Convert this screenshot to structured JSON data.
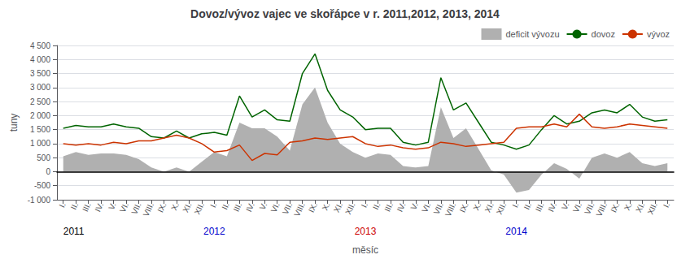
{
  "chart_data": {
    "type": "line",
    "title": "Dovoz/vývoz vajec ve skořápce v r. 2011,2012, 2013, 2014",
    "xlabel": "měsíc",
    "ylabel": "tuny",
    "categories": [
      "I.",
      "II.",
      "III.",
      "IV.",
      "V.",
      "VI.",
      "VII.",
      "VIII.",
      "IX.",
      "X.",
      "XI.",
      "XII.",
      "I.",
      "II.",
      "III.",
      "IV.",
      "V.",
      "VI.",
      "VII.",
      "VIII.",
      "IX.",
      "X.",
      "XI.",
      "XII.",
      "I.",
      "II.",
      "III.",
      "IV.",
      "V.",
      "VI.",
      "VII.",
      "VIII.",
      "IX.",
      "X.",
      "XI.",
      "XII.",
      "I.",
      "II.",
      "III.",
      "IV.",
      "V.",
      "VI.",
      "VII.",
      "VIII.",
      "IX.",
      "X.",
      "XI.",
      "XII.",
      "I."
    ],
    "series": [
      {
        "name": "deficit vývozu",
        "type": "area",
        "color": "#b0b0b0",
        "values": [
          550,
          700,
          600,
          650,
          650,
          600,
          450,
          150,
          0,
          150,
          0,
          350,
          700,
          550,
          1750,
          1550,
          1550,
          1250,
          750,
          2400,
          3000,
          1750,
          1000,
          700,
          500,
          650,
          600,
          200,
          150,
          200,
          2300,
          1200,
          1550,
          800,
          50,
          -100,
          -750,
          -650,
          -100,
          300,
          100,
          -250,
          500,
          650,
          500,
          700,
          300,
          200,
          300
        ]
      },
      {
        "name": "dovoz",
        "type": "line",
        "color": "#006400",
        "values": [
          1550,
          1650,
          1600,
          1600,
          1700,
          1600,
          1550,
          1250,
          1200,
          1450,
          1200,
          1350,
          1400,
          1300,
          2700,
          1950,
          2200,
          1850,
          1800,
          3500,
          4200,
          2900,
          2200,
          1950,
          1500,
          1550,
          1550,
          1050,
          950,
          1050,
          3350,
          2200,
          2450,
          1750,
          1050,
          950,
          800,
          950,
          1500,
          2000,
          1700,
          1800,
          2100,
          2200,
          2100,
          2400,
          1950,
          1800,
          1850
        ]
      },
      {
        "name": "vývoz",
        "type": "line",
        "color": "#cc3300",
        "values": [
          1000,
          950,
          1000,
          950,
          1050,
          1000,
          1100,
          1100,
          1200,
          1300,
          1200,
          1000,
          700,
          750,
          950,
          400,
          650,
          600,
          1050,
          1100,
          1200,
          1150,
          1200,
          1250,
          1000,
          900,
          950,
          850,
          800,
          850,
          1050,
          1000,
          900,
          950,
          1000,
          1050,
          1550,
          1600,
          1600,
          1700,
          1600,
          2050,
          1600,
          1550,
          1600,
          1700,
          1650,
          1600,
          1550
        ]
      }
    ],
    "ylim": [
      -1000,
      4500
    ],
    "yticks": [
      {
        "value": -1000,
        "label": "-1 000"
      },
      -500,
      0,
      500,
      {
        "value": 1000,
        "label": "1 000"
      },
      {
        "value": 1500,
        "label": "1 500"
      },
      {
        "value": 2000,
        "label": "2 000"
      },
      {
        "value": 2500,
        "label": "2 500"
      },
      {
        "value": 3000,
        "label": "3 000"
      },
      {
        "value": 3500,
        "label": "3 500"
      },
      {
        "value": 4000,
        "label": "4 000"
      },
      {
        "value": 4500,
        "label": "4 500"
      }
    ],
    "grid": true,
    "legend": "upper right",
    "annotations": [
      {
        "text": "2011",
        "x": 0,
        "color": "#000000"
      },
      {
        "text": "2012",
        "x": 12,
        "color": "#0000cc"
      },
      {
        "text": "2013",
        "x": 24,
        "color": "#cc0000"
      },
      {
        "text": "2014",
        "x": 36,
        "color": "#0000cc"
      }
    ]
  }
}
